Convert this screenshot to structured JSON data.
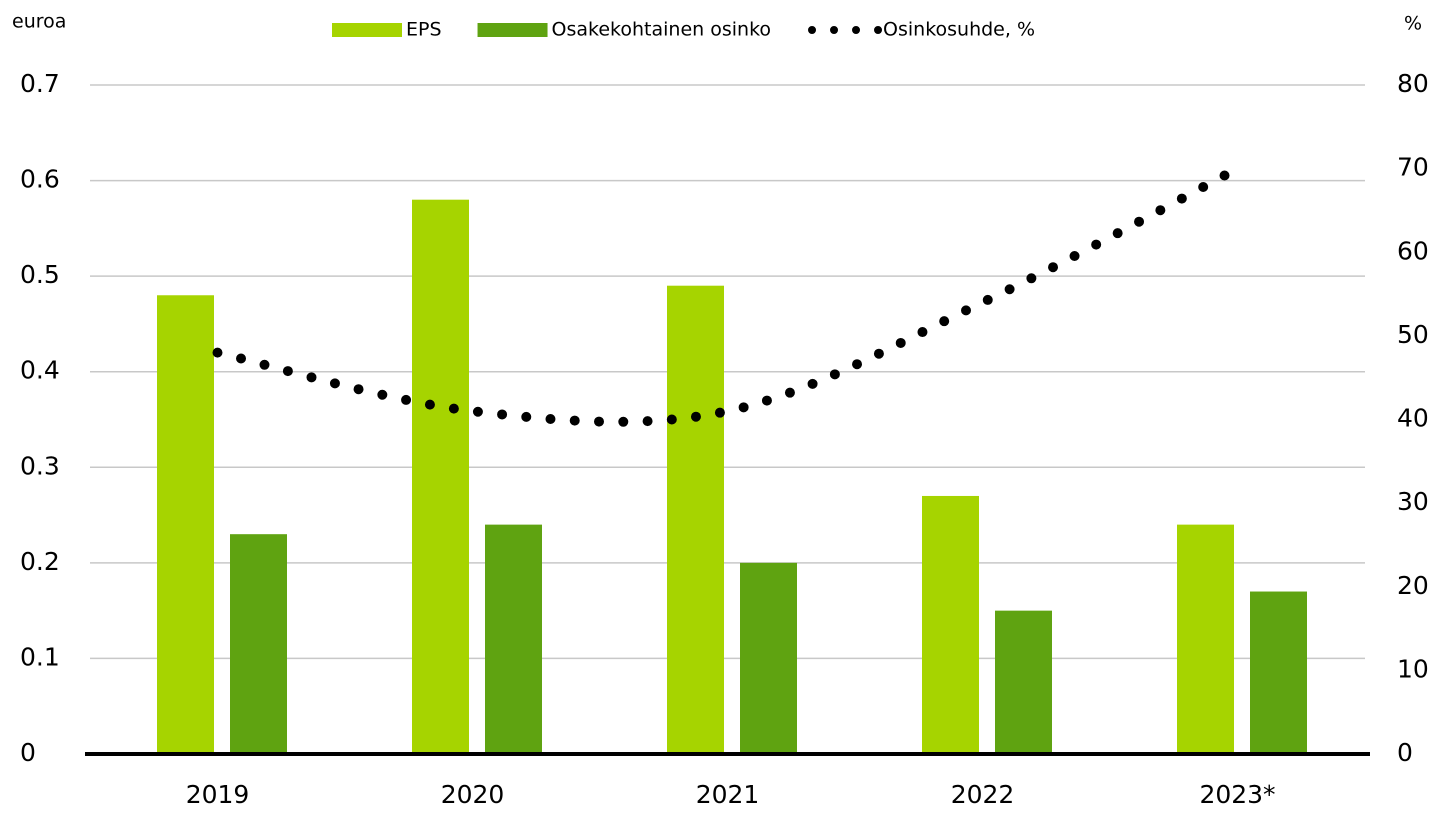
{
  "chart_data": {
    "type": "bar",
    "y_label": "euroa",
    "y2_label": "%",
    "categories": [
      "2019",
      "2020",
      "2021",
      "2022",
      "2023*"
    ],
    "series": [
      {
        "name": "EPS",
        "color": "#a6d400",
        "values": [
          0.48,
          0.58,
          0.49,
          0.27,
          0.24
        ]
      },
      {
        "name": "Osakekohtainen osinko",
        "color": "#5fa311",
        "values": [
          0.23,
          0.24,
          0.2,
          0.15,
          0.17
        ]
      },
      {
        "name": "Osinkosuhde, %",
        "color": "#000000",
        "type": "line",
        "axis": "y2",
        "values": [
          48,
          41,
          41,
          54,
          70
        ]
      }
    ],
    "ylim": [
      0,
      0.7
    ],
    "yticks": [
      0,
      0.1,
      0.2,
      0.3,
      0.4,
      0.5,
      0.6,
      0.7
    ],
    "y2lim": [
      0,
      80
    ],
    "y2ticks": [
      0,
      10,
      20,
      30,
      40,
      50,
      60,
      70,
      80
    ],
    "grid": true,
    "legend": "top"
  }
}
